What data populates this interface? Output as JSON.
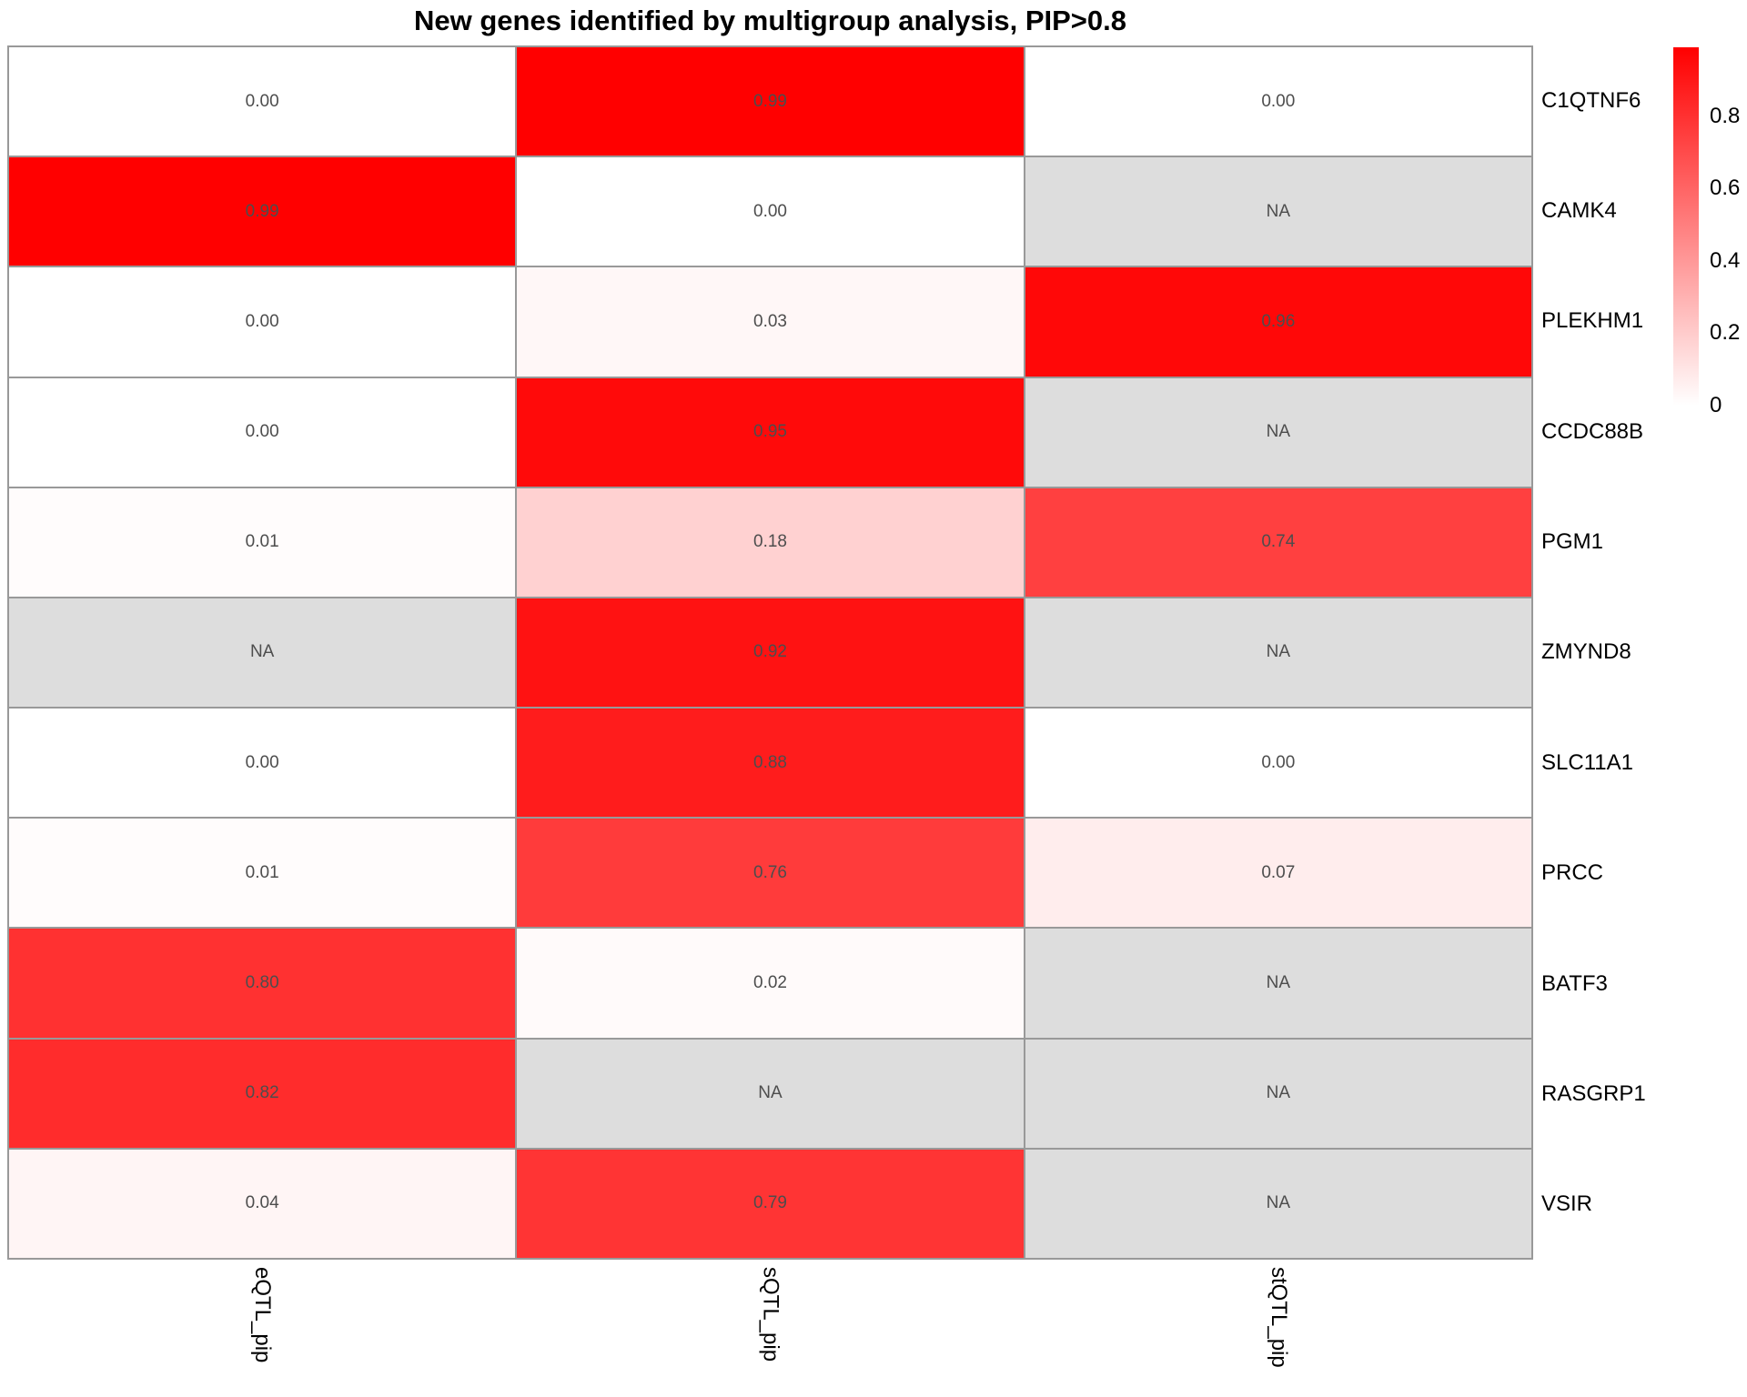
{
  "title": "New genes identified by multigroup analysis, PIP>0.8",
  "chart_data": {
    "type": "heatmap",
    "title": "New genes identified by multigroup analysis, PIP>0.8",
    "columns": [
      "eQTL_pip",
      "sQTL_pip",
      "stQTL_pip"
    ],
    "rows": [
      "C1QTNF6",
      "CAMK4",
      "PLEKHM1",
      "CCDC88B",
      "PGM1",
      "ZMYND8",
      "SLC11A1",
      "PRCC",
      "BATF3",
      "RASGRP1",
      "VSIR"
    ],
    "values": [
      [
        0.0,
        0.99,
        0.0
      ],
      [
        0.99,
        0.0,
        null
      ],
      [
        0.0,
        0.03,
        0.96
      ],
      [
        0.0,
        0.95,
        null
      ],
      [
        0.01,
        0.18,
        0.74
      ],
      [
        null,
        0.92,
        null
      ],
      [
        0.0,
        0.88,
        0.0
      ],
      [
        0.01,
        0.76,
        0.07
      ],
      [
        0.8,
        0.02,
        null
      ],
      [
        0.82,
        null,
        null
      ],
      [
        0.04,
        0.79,
        null
      ]
    ],
    "cell_labels": [
      [
        "0.00",
        "0.99",
        "0.00"
      ],
      [
        "0.99",
        "0.00",
        "NA"
      ],
      [
        "0.00",
        "0.03",
        "0.96"
      ],
      [
        "0.00",
        "0.95",
        "NA"
      ],
      [
        "0.01",
        "0.18",
        "0.74"
      ],
      [
        "NA",
        "0.92",
        "NA"
      ],
      [
        "0.00",
        "0.88",
        "0.00"
      ],
      [
        "0.01",
        "0.76",
        "0.07"
      ],
      [
        "0.80",
        "0.02",
        "NA"
      ],
      [
        "0.82",
        "NA",
        "NA"
      ],
      [
        "0.04",
        "0.79",
        "NA"
      ]
    ],
    "na_label": "NA",
    "value_range": [
      0,
      0.99
    ],
    "grid": true,
    "legend": {
      "position": "right",
      "ticks": [
        {
          "value": 0.8,
          "label": "0.8"
        },
        {
          "value": 0.6,
          "label": "0.6"
        },
        {
          "value": 0.4,
          "label": "0.4"
        },
        {
          "value": 0.2,
          "label": "0.2"
        },
        {
          "value": 0.0,
          "label": "0"
        }
      ]
    },
    "colors": {
      "low": "#FFFFFF",
      "high": "#FF0000",
      "na": "#DDDDDD",
      "border": "#999999",
      "value_text": "#4D4D4D"
    }
  }
}
